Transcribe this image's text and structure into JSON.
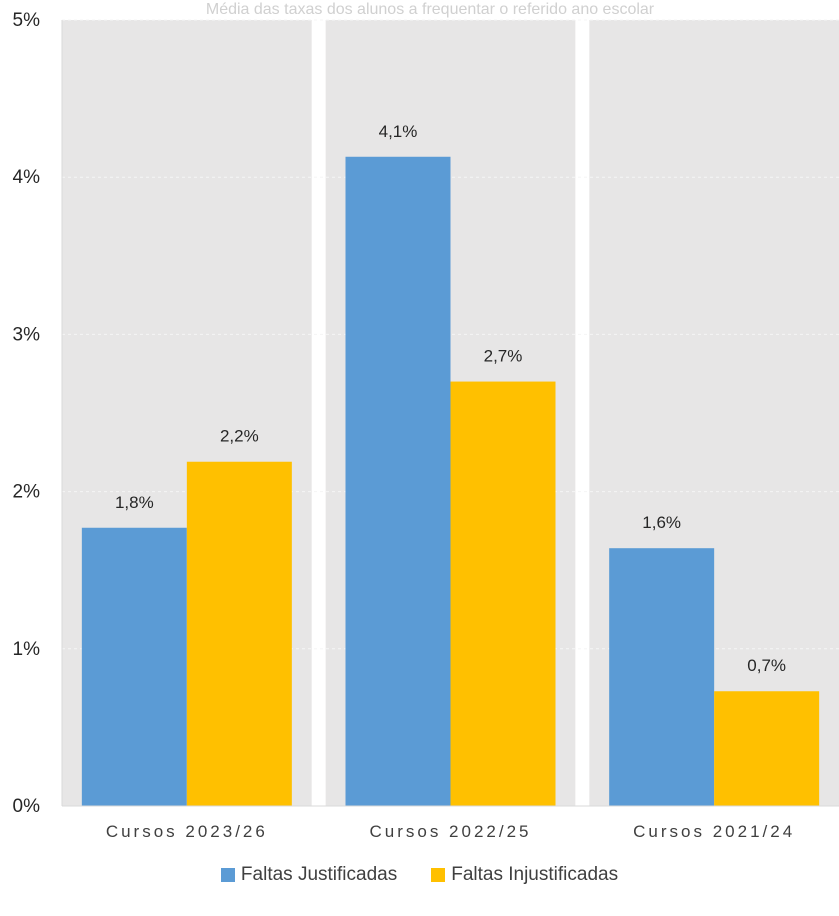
{
  "chart_data": {
    "type": "bar",
    "title": "Média das taxas dos alunos a frequentar o referido ano escolar",
    "categories": [
      "Cursos 2023/26",
      "Cursos 2022/25",
      "Cursos 2021/24"
    ],
    "series": [
      {
        "name": "Faltas Justificadas",
        "color": "#5B9BD5",
        "values": [
          1.77,
          4.13,
          1.64
        ],
        "labels": [
          "1,8%",
          "4,1%",
          "1,6%"
        ]
      },
      {
        "name": "Faltas Injustificadas",
        "color": "#FFC000",
        "values": [
          2.19,
          2.7,
          0.73
        ],
        "labels": [
          "2,2%",
          "2,7%",
          "0,7%"
        ]
      }
    ],
    "ylim": [
      0,
      5
    ],
    "yticks": [
      {
        "value": 0,
        "label": "0%"
      },
      {
        "value": 1,
        "label": "1%"
      },
      {
        "value": 2,
        "label": "2%"
      },
      {
        "value": 3,
        "label": "3%"
      },
      {
        "value": 4,
        "label": "4%"
      },
      {
        "value": 5,
        "label": "5%"
      }
    ],
    "grid": true,
    "legend_position": "bottom"
  }
}
